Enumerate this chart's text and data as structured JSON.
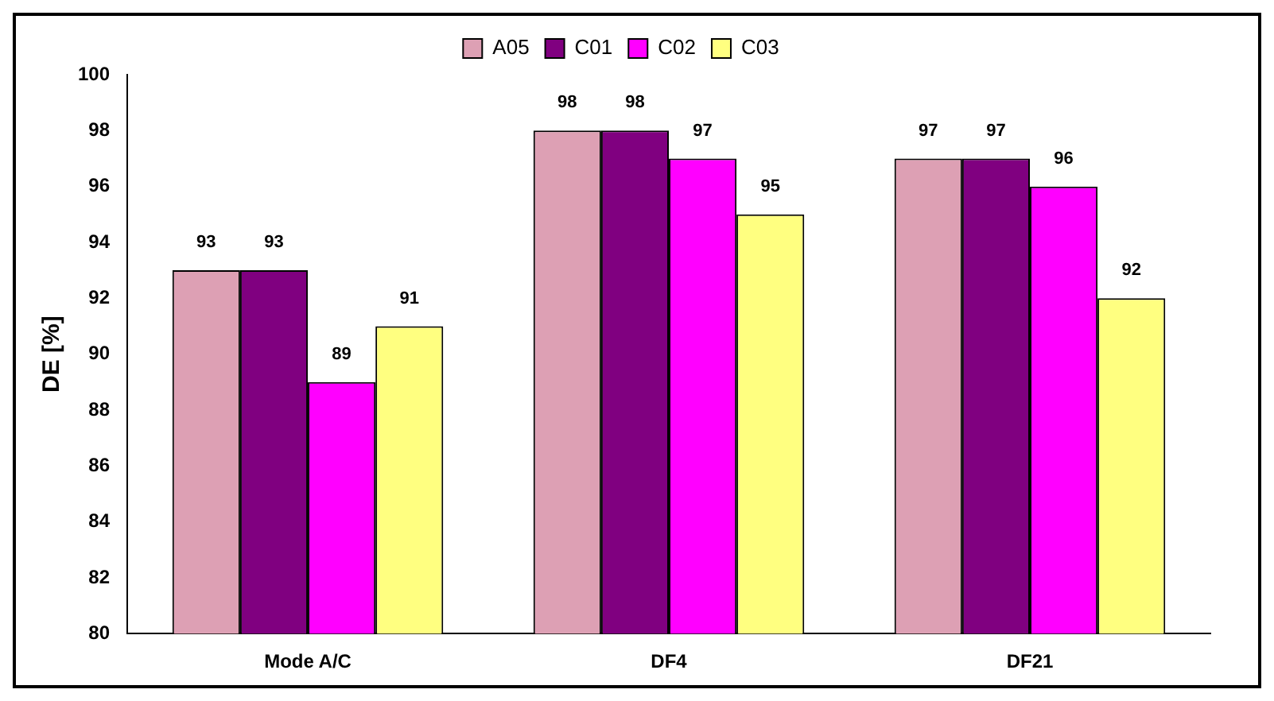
{
  "chart_data": {
    "type": "bar",
    "ylabel": "DE [%]",
    "categories": [
      "Mode A/C",
      "DF4",
      "DF21"
    ],
    "series": [
      {
        "name": "A05",
        "color": "#dda0b4",
        "values": [
          93,
          98,
          97
        ]
      },
      {
        "name": "C01",
        "color": "#800080",
        "values": [
          93,
          98,
          97
        ]
      },
      {
        "name": "C02",
        "color": "#ff00ff",
        "values": [
          89,
          97,
          96
        ]
      },
      {
        "name": "C03",
        "color": "#ffff80",
        "values": [
          91,
          95,
          92
        ]
      }
    ],
    "ylim": [
      80,
      100
    ],
    "yticks": [
      80,
      82,
      84,
      86,
      88,
      90,
      92,
      94,
      96,
      98,
      100
    ],
    "grid": false,
    "legend": "top",
    "data_labels": true
  }
}
